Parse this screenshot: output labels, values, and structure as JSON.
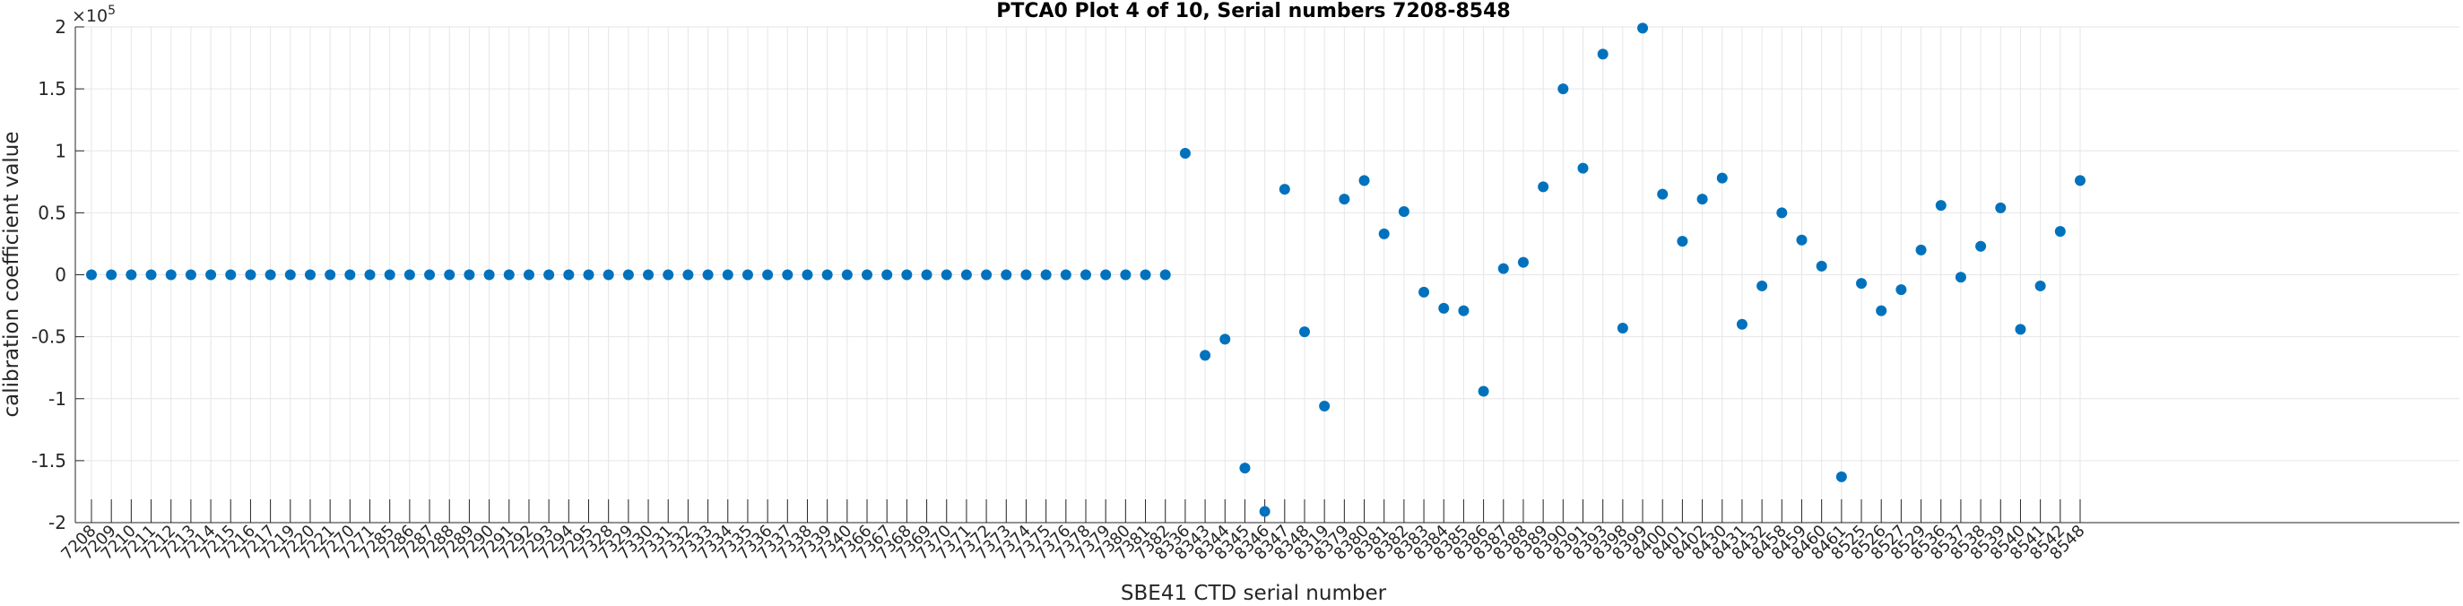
{
  "chart_data": {
    "type": "scatter",
    "title": "PTCA0 Plot 4 of 10, Serial numbers 7208-8548",
    "xlabel": "SBE41 CTD serial number",
    "ylabel": "calibration coefficient value",
    "y_exponent_base": "×10",
    "y_exponent_power": "5",
    "ylim": [
      -200000,
      200000
    ],
    "ytick_values": [
      -2,
      -1.5,
      -1,
      -0.5,
      0,
      0.5,
      1,
      1.5,
      2
    ],
    "ytick_labels": [
      "-2",
      "-1.5",
      "-1",
      "-0.5",
      "0",
      "0.5",
      "1",
      "1.5",
      "2"
    ],
    "grid": true,
    "color": "#0072bd",
    "categories": [
      "7208",
      "7209",
      "7210",
      "7211",
      "7212",
      "7213",
      "7214",
      "7215",
      "7216",
      "7217",
      "7219",
      "7220",
      "7221",
      "7270",
      "7271",
      "7285",
      "7286",
      "7287",
      "7288",
      "7289",
      "7290",
      "7291",
      "7292",
      "7293",
      "7294",
      "7295",
      "7328",
      "7329",
      "7330",
      "7331",
      "7332",
      "7333",
      "7334",
      "7335",
      "7336",
      "7337",
      "7338",
      "7339",
      "7340",
      "7366",
      "7367",
      "7368",
      "7369",
      "7370",
      "7371",
      "7372",
      "7373",
      "7374",
      "7375",
      "7376",
      "7378",
      "7379",
      "7380",
      "7381",
      "7382",
      "8336",
      "8343",
      "8344",
      "8345",
      "8346",
      "8347",
      "8348",
      "8319",
      "8379",
      "8380",
      "8381",
      "8382",
      "8383",
      "8384",
      "8385",
      "8386",
      "8387",
      "8388",
      "8389",
      "8390",
      "8391",
      "8393",
      "8398",
      "8399",
      "8400",
      "8401",
      "8402",
      "8430",
      "8431",
      "8432",
      "8458",
      "8459",
      "8460",
      "8461",
      "8525",
      "8526",
      "8527",
      "8529",
      "8536",
      "8537",
      "8538",
      "8539",
      "8540",
      "8541",
      "8542",
      "8548"
    ],
    "values": [
      0,
      0,
      0,
      0,
      0,
      0,
      0,
      0,
      0,
      0,
      0,
      0,
      0,
      0,
      0,
      0,
      0,
      0,
      0,
      0,
      0,
      0,
      0,
      0,
      0,
      0,
      0,
      0,
      0,
      0,
      0,
      0,
      0,
      0,
      0,
      0,
      0,
      0,
      0,
      0,
      0,
      0,
      0,
      0,
      0,
      0,
      0,
      0,
      0,
      0,
      0,
      0,
      0,
      0,
      0,
      98000,
      -65000,
      -52000,
      -156000,
      -191000,
      69000,
      -46000,
      -106000,
      61000,
      76000,
      33000,
      51000,
      -14000,
      -27000,
      -29000,
      -94000,
      5000,
      10000,
      71000,
      150000,
      86000,
      178000,
      -43000,
      199000,
      65000,
      27000,
      61000,
      78000,
      -40000,
      -9000,
      50000,
      28000,
      7000,
      -163000,
      -7000,
      -29000,
      -12000,
      20000,
      56000,
      -2000,
      23000,
      54000,
      -44000,
      -9000,
      35000,
      76000
    ]
  }
}
